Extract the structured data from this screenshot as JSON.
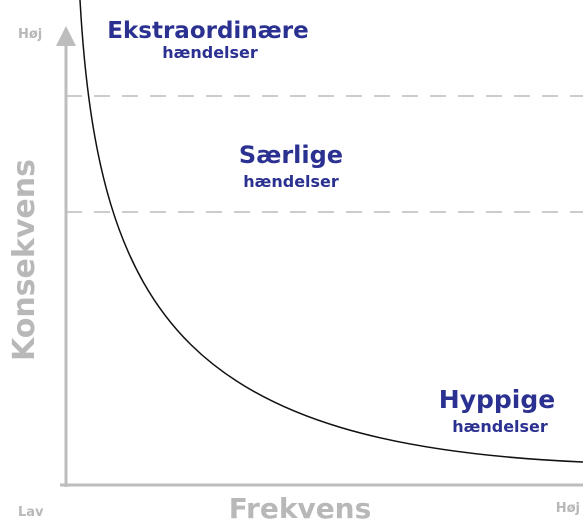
{
  "axes": {
    "y_label": "Konsekvens",
    "y_high": "Høj",
    "origin": "Lav",
    "x_label": "Frekvens",
    "x_high": "Høj"
  },
  "regions": [
    {
      "title": "Ekstraordinære",
      "subtitle": "hændelser"
    },
    {
      "title": "Særlige",
      "subtitle": "hændelser"
    },
    {
      "title": "Hyppige",
      "subtitle": "hændelser"
    }
  ]
}
